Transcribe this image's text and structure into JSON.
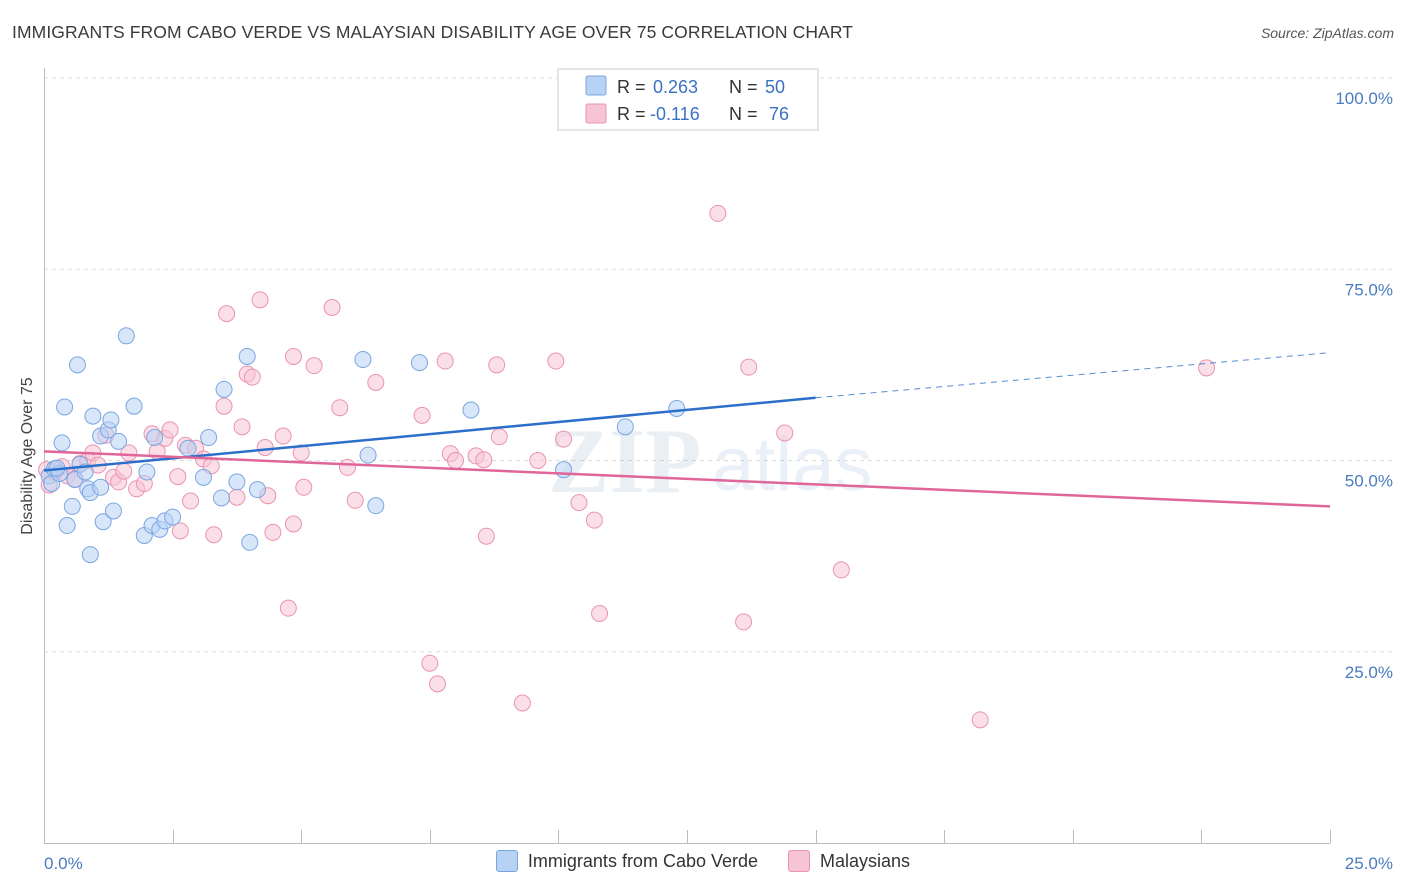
{
  "header": {
    "title": "IMMIGRANTS FROM CABO VERDE VS MALAYSIAN DISABILITY AGE OVER 75 CORRELATION CHART",
    "source": "Source: ZipAtlas.com"
  },
  "watermark": {
    "zip": "ZIP",
    "atlas": "atlas"
  },
  "colors": {
    "blue_fill": "#b8d2f5",
    "blue_stroke": "#7aa6e0",
    "blue_line": "#2b6fcb",
    "pink_fill": "#f7c4d6",
    "pink_stroke": "#ea93b2",
    "pink_line": "#e0669a",
    "tick_text": "#4a7cc0",
    "grid": "#dddddd"
  },
  "legend": {
    "series": [
      {
        "r_label": "R =",
        "r_value": "0.263",
        "n_label": "N =",
        "n_value": "50"
      },
      {
        "r_label": "R =",
        "r_value": "-0.116",
        "n_label": "N =",
        "n_value": "76"
      }
    ]
  },
  "chart_data": {
    "type": "scatter",
    "title": "IMMIGRANTS FROM CABO VERDE VS MALAYSIAN DISABILITY AGE OVER 75 CORRELATION CHART",
    "xlabel": "",
    "ylabel": "Disability Age Over 75",
    "xlim": [
      0,
      25
    ],
    "ylim": [
      0,
      100
    ],
    "x_ticks": [
      0,
      2.5,
      5,
      7.5,
      10,
      12.5,
      15,
      17.5,
      20,
      22.5,
      25
    ],
    "x_tick_labels": {
      "0": "0.0%",
      "25": "25.0%"
    },
    "y_ticks": [
      25,
      50,
      75,
      100
    ],
    "y_tick_labels": [
      "25.0%",
      "50.0%",
      "75.0%",
      "100.0%"
    ],
    "grid": true,
    "series": [
      {
        "name": "Immigrants from Cabo Verde",
        "color": "#7aa6e0",
        "trend": {
          "x": [
            0,
            15
          ],
          "y": [
            48.7,
            58.2
          ],
          "dashed_to": [
            25,
            64.1
          ]
        },
        "points": [
          [
            0.1,
            48.0
          ],
          [
            0.15,
            47.0
          ],
          [
            0.2,
            48.9
          ],
          [
            0.3,
            48.3
          ],
          [
            0.35,
            52.3
          ],
          [
            0.4,
            57.0
          ],
          [
            0.45,
            41.5
          ],
          [
            0.55,
            44.0
          ],
          [
            0.6,
            47.5
          ],
          [
            0.65,
            62.5
          ],
          [
            0.7,
            49.5
          ],
          [
            0.8,
            48.5
          ],
          [
            0.85,
            46.3
          ],
          [
            0.9,
            45.8
          ],
          [
            0.9,
            37.7
          ],
          [
            0.95,
            55.8
          ],
          [
            1.1,
            46.5
          ],
          [
            1.1,
            53.2
          ],
          [
            1.15,
            42.0
          ],
          [
            1.25,
            54.0
          ],
          [
            1.3,
            55.3
          ],
          [
            1.35,
            43.4
          ],
          [
            1.45,
            52.5
          ],
          [
            1.6,
            66.3
          ],
          [
            1.75,
            57.1
          ],
          [
            1.95,
            40.2
          ],
          [
            2.0,
            48.5
          ],
          [
            2.1,
            41.5
          ],
          [
            2.15,
            53.0
          ],
          [
            2.25,
            41.0
          ],
          [
            2.35,
            42.1
          ],
          [
            2.5,
            42.6
          ],
          [
            2.8,
            51.6
          ],
          [
            3.1,
            47.8
          ],
          [
            3.2,
            53.0
          ],
          [
            3.45,
            45.1
          ],
          [
            3.5,
            59.3
          ],
          [
            3.75,
            47.2
          ],
          [
            3.95,
            63.6
          ],
          [
            4.0,
            39.3
          ],
          [
            4.15,
            46.2
          ],
          [
            6.2,
            63.2
          ],
          [
            6.3,
            50.7
          ],
          [
            6.45,
            44.1
          ],
          [
            7.3,
            62.8
          ],
          [
            8.3,
            56.6
          ],
          [
            10.1,
            48.8
          ],
          [
            11.3,
            54.4
          ],
          [
            12.3,
            56.8
          ],
          [
            0.25,
            49.0
          ]
        ]
      },
      {
        "name": "Malaysians",
        "color": "#ea93b2",
        "trend": {
          "x": [
            0,
            25
          ],
          "y": [
            51.2,
            44.0
          ]
        },
        "points": [
          [
            0.1,
            46.8
          ],
          [
            0.2,
            48.5
          ],
          [
            0.35,
            49.2
          ],
          [
            0.45,
            48.0
          ],
          [
            0.6,
            47.6
          ],
          [
            0.7,
            49.6
          ],
          [
            0.85,
            50.0
          ],
          [
            0.95,
            51.0
          ],
          [
            1.05,
            49.4
          ],
          [
            1.2,
            53.3
          ],
          [
            1.35,
            47.8
          ],
          [
            1.45,
            47.2
          ],
          [
            1.55,
            48.6
          ],
          [
            1.65,
            51.0
          ],
          [
            1.8,
            46.3
          ],
          [
            1.95,
            47.0
          ],
          [
            2.1,
            53.5
          ],
          [
            2.2,
            51.2
          ],
          [
            2.35,
            52.9
          ],
          [
            2.45,
            54.0
          ],
          [
            2.6,
            47.9
          ],
          [
            2.65,
            40.8
          ],
          [
            2.75,
            52.0
          ],
          [
            2.85,
            44.7
          ],
          [
            2.95,
            51.6
          ],
          [
            3.1,
            50.2
          ],
          [
            3.25,
            49.3
          ],
          [
            3.3,
            40.3
          ],
          [
            3.5,
            57.1
          ],
          [
            3.55,
            69.2
          ],
          [
            3.75,
            45.2
          ],
          [
            3.85,
            54.4
          ],
          [
            3.95,
            61.3
          ],
          [
            4.05,
            60.9
          ],
          [
            4.2,
            71.0
          ],
          [
            4.3,
            51.7
          ],
          [
            4.35,
            45.4
          ],
          [
            4.45,
            40.6
          ],
          [
            4.65,
            53.2
          ],
          [
            4.75,
            30.7
          ],
          [
            4.85,
            41.7
          ],
          [
            4.85,
            63.6
          ],
          [
            5.0,
            51.0
          ],
          [
            5.05,
            46.5
          ],
          [
            5.25,
            62.4
          ],
          [
            5.6,
            70.0
          ],
          [
            5.75,
            56.9
          ],
          [
            5.9,
            49.1
          ],
          [
            6.05,
            44.8
          ],
          [
            6.45,
            60.2
          ],
          [
            7.35,
            55.9
          ],
          [
            7.5,
            23.5
          ],
          [
            7.65,
            20.8
          ],
          [
            7.8,
            63.0
          ],
          [
            7.9,
            50.9
          ],
          [
            8.0,
            50.0
          ],
          [
            8.4,
            50.6
          ],
          [
            8.55,
            50.1
          ],
          [
            8.6,
            40.1
          ],
          [
            8.8,
            62.5
          ],
          [
            8.85,
            53.1
          ],
          [
            9.3,
            18.3
          ],
          [
            9.6,
            50.0
          ],
          [
            9.95,
            63.0
          ],
          [
            10.1,
            52.8
          ],
          [
            10.4,
            44.5
          ],
          [
            10.7,
            42.2
          ],
          [
            10.8,
            30.0
          ],
          [
            13.1,
            82.3
          ],
          [
            13.6,
            28.9
          ],
          [
            13.7,
            62.2
          ],
          [
            14.4,
            53.6
          ],
          [
            15.5,
            35.7
          ],
          [
            18.2,
            16.1
          ],
          [
            22.6,
            62.1
          ],
          [
            0.05,
            48.8
          ]
        ]
      }
    ]
  }
}
